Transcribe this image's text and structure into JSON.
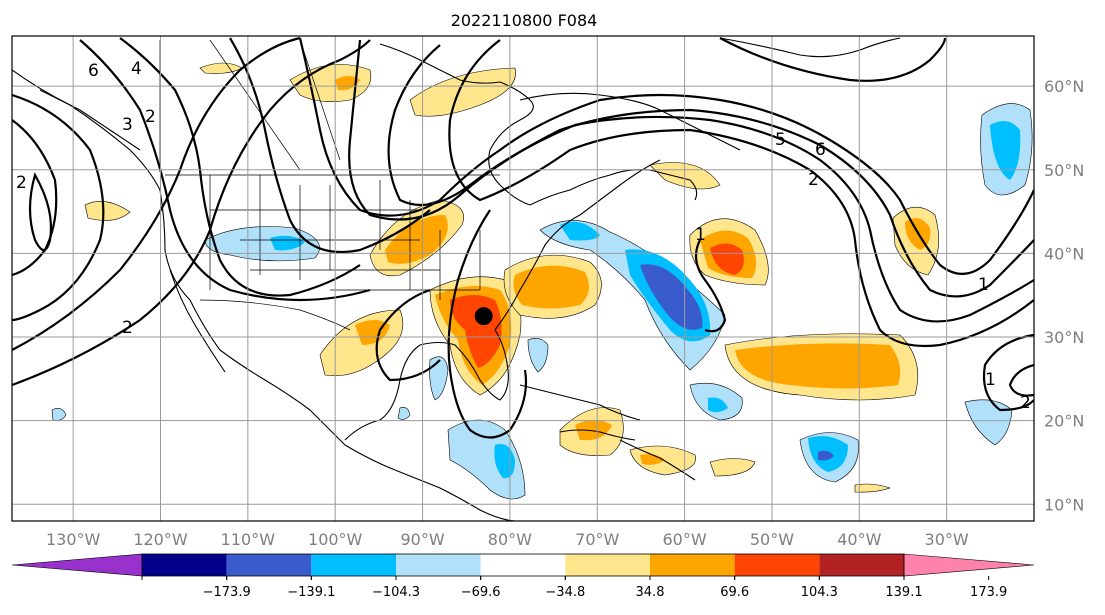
{
  "title": "2022110800 F084",
  "map": {
    "lon_range": [
      -137,
      -20
    ],
    "lat_range": [
      8,
      66
    ],
    "lat_ticks": [
      10,
      20,
      30,
      40,
      50,
      60
    ],
    "lat_tick_labels": [
      "10°N",
      "20°N",
      "30°N",
      "40°N",
      "50°N",
      "60°N"
    ],
    "lon_ticks": [
      -130,
      -120,
      -110,
      -100,
      -90,
      -80,
      -70,
      -60,
      -50,
      -40,
      -30
    ],
    "lon_tick_labels": [
      "130°W",
      "120°W",
      "110°W",
      "100°W",
      "90°W",
      "80°W",
      "70°W",
      "60°W",
      "50°W",
      "40°W",
      "30°W"
    ],
    "grid": true,
    "marker": {
      "lon": -83,
      "lat": 32.5,
      "color": "#000000"
    }
  },
  "colorbar": {
    "colors": [
      "#9932cc",
      "#00008b",
      "#3a5bcc",
      "#00bfff",
      "#b0e0fa",
      "#ffffff",
      "#ffe68c",
      "#ffa500",
      "#ff4500",
      "#b22222",
      "#ff82ab"
    ],
    "tick_labels": [
      "−173.9",
      "−139.1",
      "−104.3",
      "−69.6",
      "−34.8",
      "34.8",
      "69.6",
      "104.3",
      "139.1",
      "173.9"
    ],
    "extend": "both"
  },
  "contour_labels": [
    "6",
    "4",
    "2",
    "3",
    "2",
    "2",
    "5",
    "6",
    "2",
    "1",
    "1",
    "2",
    "1"
  ],
  "colors": {
    "gridline": "#9a9a9a",
    "tick_text": "#7f7f7f",
    "line": "#000000"
  }
}
